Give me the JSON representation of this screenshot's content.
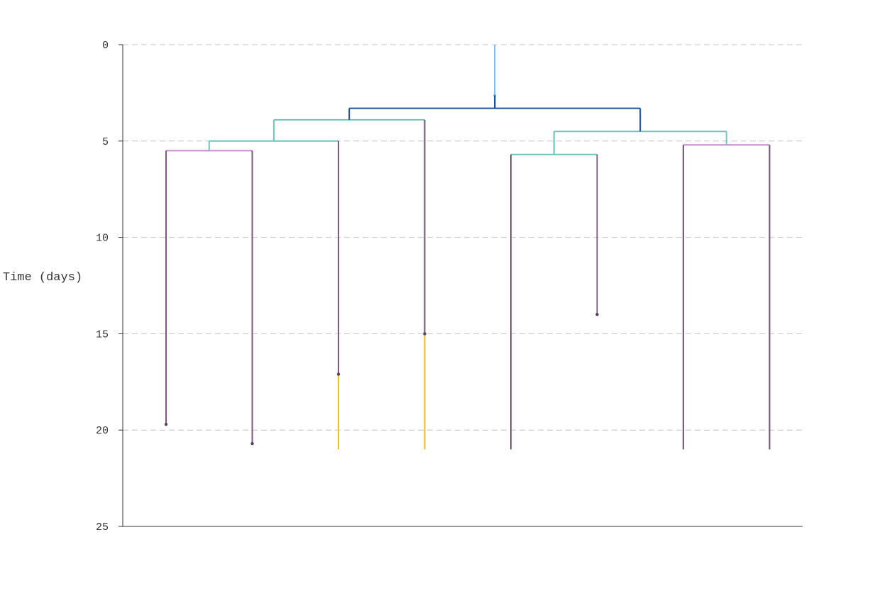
{
  "chart_data": {
    "type": "dendrogram",
    "ylabel": "Time (days)",
    "ylim": [
      0,
      25
    ],
    "yticks": [
      0,
      5,
      10,
      15,
      20,
      25
    ],
    "y_inverted": true,
    "grid": "horizontal dashed",
    "legend": "none",
    "tip_count": 8,
    "root": {
      "start": 0,
      "end": 3.3
    },
    "colors": {
      "root": "#6fb0ec",
      "root_split": "#1f4e9a",
      "branch": "#6cc4c0",
      "inner": "#c48cc8",
      "tip": "#7b5a7e",
      "extension": "#f3be1b"
    },
    "internal_nodes": [
      {
        "id": "root",
        "height": 3.3,
        "children": [
          "L1",
          "R1"
        ],
        "color": "root_split"
      },
      {
        "id": "L1",
        "height": 3.9,
        "children": [
          "L2",
          "t4"
        ],
        "color": "branch"
      },
      {
        "id": "L2",
        "height": 5.0,
        "children": [
          "L3",
          "t3"
        ],
        "color": "branch"
      },
      {
        "id": "L3",
        "height": 5.5,
        "children": [
          "t1",
          "t2"
        ],
        "color": "inner"
      },
      {
        "id": "R1",
        "height": 4.5,
        "children": [
          "R2",
          "R3"
        ],
        "color": "branch"
      },
      {
        "id": "R2",
        "height": 5.7,
        "children": [
          "t5",
          "t6"
        ],
        "color": "branch"
      },
      {
        "id": "R3",
        "height": 5.2,
        "children": [
          "t7",
          "t8"
        ],
        "color": "inner"
      }
    ],
    "tips": [
      {
        "id": "t1",
        "index": 0,
        "end": 19.7,
        "marker": true
      },
      {
        "id": "t2",
        "index": 1,
        "end": 20.7,
        "marker": true
      },
      {
        "id": "t3",
        "index": 2,
        "end": 17.1,
        "marker": true,
        "extension_end": 21.0
      },
      {
        "id": "t4",
        "index": 3,
        "end": 15.0,
        "marker": true,
        "extension_end": 21.0
      },
      {
        "id": "t5",
        "index": 4,
        "end": 21.0,
        "marker": false
      },
      {
        "id": "t6",
        "index": 5,
        "end": 14.0,
        "marker": true
      },
      {
        "id": "t7",
        "index": 6,
        "end": 21.0,
        "marker": false
      },
      {
        "id": "t8",
        "index": 7,
        "end": 21.0,
        "marker": false
      }
    ]
  }
}
